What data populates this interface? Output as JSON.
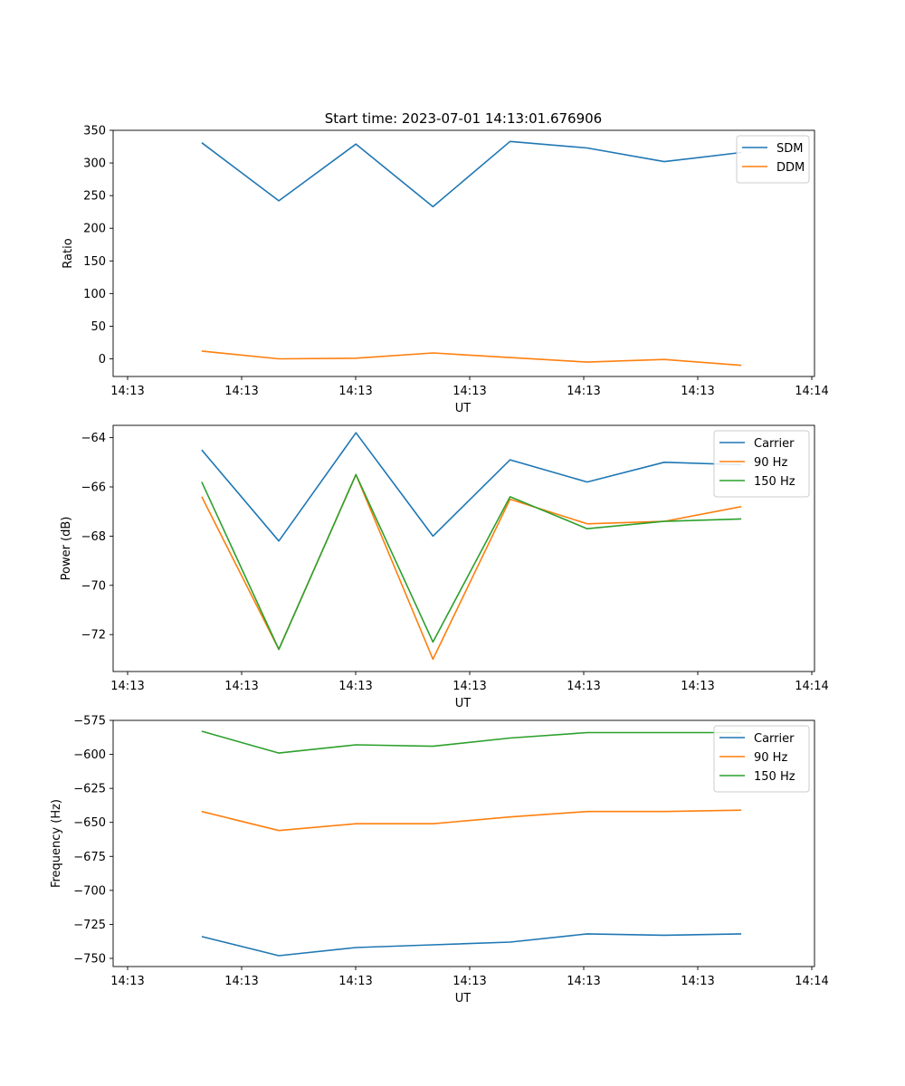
{
  "title": "Start time: 2023-07-01 14:13:01.676906",
  "chart_data": [
    {
      "type": "line",
      "xlabel": "UT",
      "ylabel": "Ratio",
      "x_tick_labels": [
        "14:13",
        "14:13",
        "14:13",
        "14:13",
        "14:13",
        "14:13",
        "14:14"
      ],
      "ylim": [
        -27,
        350
      ],
      "y_ticks": [
        0,
        50,
        100,
        150,
        200,
        250,
        300,
        350
      ],
      "y_tick_labels": [
        "0",
        "50",
        "100",
        "150",
        "200",
        "250",
        "300",
        "350"
      ],
      "x": [
        1,
        2,
        3,
        4,
        5,
        6,
        7,
        8
      ],
      "xlim": [
        -0.15,
        8.95
      ],
      "legend_position": "top-right",
      "series": [
        {
          "name": "SDM",
          "color": "#1f77b4",
          "values": [
            331,
            242,
            329,
            233,
            333,
            323,
            302,
            316
          ]
        },
        {
          "name": "DDM",
          "color": "#ff7f0e",
          "values": [
            12,
            0,
            1,
            9,
            2,
            -5,
            -1,
            -10
          ]
        }
      ]
    },
    {
      "type": "line",
      "xlabel": "UT",
      "ylabel": "Power (dB)",
      "x_tick_labels": [
        "14:13",
        "14:13",
        "14:13",
        "14:13",
        "14:13",
        "14:13",
        "14:14"
      ],
      "ylim": [
        -73.5,
        -63.5
      ],
      "y_ticks": [
        -72,
        -70,
        -68,
        -66,
        -64
      ],
      "y_tick_labels": [
        "−72",
        "−70",
        "−68",
        "−66",
        "−64"
      ],
      "x": [
        1,
        2,
        3,
        4,
        5,
        6,
        7,
        8
      ],
      "xlim": [
        -0.15,
        8.95
      ],
      "legend_position": "top-right",
      "series": [
        {
          "name": "Carrier",
          "color": "#1f77b4",
          "values": [
            -64.5,
            -68.2,
            -63.8,
            -68.0,
            -64.9,
            -65.8,
            -65.0,
            -65.1
          ]
        },
        {
          "name": "90 Hz",
          "color": "#ff7f0e",
          "values": [
            -66.4,
            -72.6,
            -65.5,
            -73.0,
            -66.5,
            -67.5,
            -67.4,
            -66.8
          ]
        },
        {
          "name": "150 Hz",
          "color": "#2ca02c",
          "values": [
            -65.8,
            -72.6,
            -65.5,
            -72.3,
            -66.4,
            -67.7,
            -67.4,
            -67.3
          ]
        }
      ]
    },
    {
      "type": "line",
      "xlabel": "UT",
      "ylabel": "Frequency (Hz)",
      "x_tick_labels": [
        "14:13",
        "14:13",
        "14:13",
        "14:13",
        "14:13",
        "14:13",
        "14:14"
      ],
      "ylim": [
        -756,
        -575
      ],
      "y_ticks": [
        -750,
        -725,
        -700,
        -675,
        -650,
        -625,
        -600,
        -575
      ],
      "y_tick_labels": [
        "−750",
        "−725",
        "−700",
        "−675",
        "−650",
        "−625",
        "−600",
        "−575"
      ],
      "x": [
        1,
        2,
        3,
        4,
        5,
        6,
        7,
        8
      ],
      "xlim": [
        -0.15,
        8.95
      ],
      "legend_position": "top-right",
      "series": [
        {
          "name": "Carrier",
          "color": "#1f77b4",
          "values": [
            -734,
            -748,
            -742,
            -740,
            -738,
            -732,
            -733,
            -732
          ]
        },
        {
          "name": "90 Hz",
          "color": "#ff7f0e",
          "values": [
            -642,
            -656,
            -651,
            -651,
            -646,
            -642,
            -642,
            -641
          ]
        },
        {
          "name": "150 Hz",
          "color": "#2ca02c",
          "values": [
            -583,
            -599,
            -593,
            -594,
            -588,
            -584,
            -584,
            -584
          ]
        }
      ]
    }
  ]
}
